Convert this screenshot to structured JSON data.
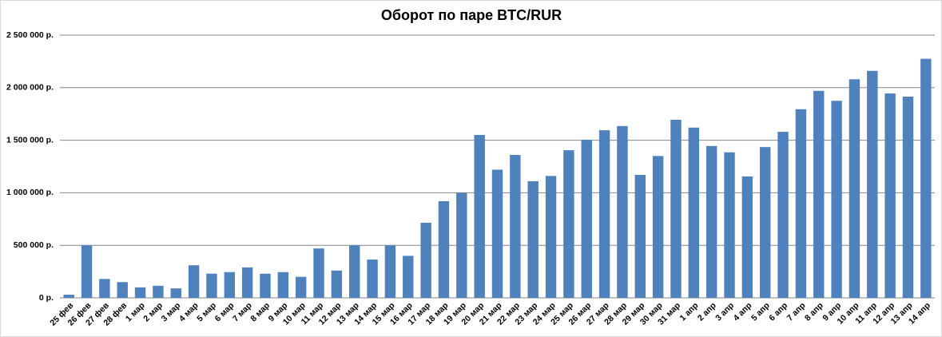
{
  "chart_data": {
    "type": "bar",
    "title": "Оборот по паре BTC/RUR",
    "categories": [
      "25 фев",
      "26 фев",
      "27 фев",
      "28 фев",
      "1 мар",
      "2 мар",
      "3 мар",
      "4 мар",
      "5 мар",
      "6 мар",
      "7 мар",
      "8 мар",
      "9 мар",
      "10 мар",
      "11 мар",
      "12 мар",
      "13 мар",
      "14 мар",
      "15 мар",
      "16 мар",
      "17 мар",
      "18 мар",
      "19 мар",
      "20 мар",
      "21 мар",
      "22 мар",
      "23 мар",
      "24 мар",
      "25 мар",
      "26 мар",
      "27 мар",
      "28 мар",
      "29 мар",
      "30 мар",
      "31 мар",
      "1 апр",
      "2 апр",
      "3 апр",
      "4 апр",
      "5 апр",
      "6 апр",
      "7 апр",
      "8 апр",
      "9 апр",
      "10 апр",
      "11 апр",
      "12 апр",
      "13 апр",
      "14 апр"
    ],
    "values": [
      30000,
      500000,
      180000,
      150000,
      100000,
      115000,
      90000,
      310000,
      230000,
      245000,
      290000,
      230000,
      245000,
      200000,
      470000,
      260000,
      500000,
      365000,
      500000,
      400000,
      715000,
      920000,
      1000000,
      1550000,
      1220000,
      1360000,
      1110000,
      1160000,
      1405000,
      1505000,
      1595000,
      1635000,
      1170000,
      1350000,
      1695000,
      1620000,
      1445000,
      1385000,
      1155000,
      1435000,
      1580000,
      1795000,
      1970000,
      1875000,
      2080000,
      2160000,
      1945000,
      1915000,
      2275000
    ],
    "color": "#4f81bd",
    "ylim": [
      0,
      2500000
    ],
    "yticks": [
      {
        "value": 0,
        "label": "0 р."
      },
      {
        "value": 500000,
        "label": "500 000 р."
      },
      {
        "value": 1000000,
        "label": "1 000 000 р."
      },
      {
        "value": 1500000,
        "label": "1 500 000 р."
      },
      {
        "value": 2000000,
        "label": "2 000 000 р."
      },
      {
        "value": 2500000,
        "label": "2 500 000 р."
      }
    ],
    "grid": true
  }
}
